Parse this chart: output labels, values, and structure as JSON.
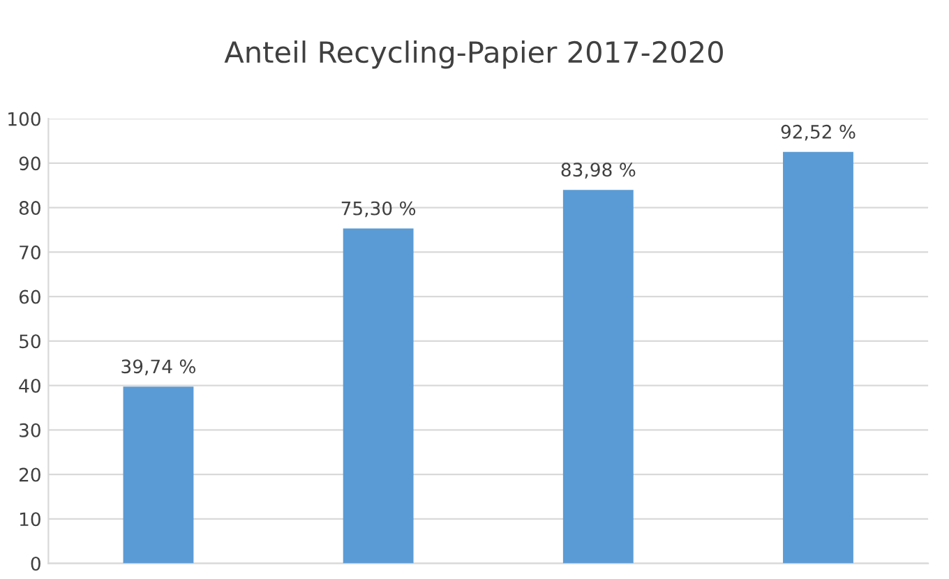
{
  "chart_data": {
    "type": "bar",
    "title": "Anteil Recycling-Papier 2017-2020",
    "categories": [
      null,
      null,
      null,
      null
    ],
    "values": [
      39.74,
      75.3,
      83.98,
      92.52
    ],
    "value_labels": [
      "39,74 %",
      "75,30 %",
      "83,98 %",
      "92,52 %"
    ],
    "color": "#5b9bd5",
    "ylim": [
      0,
      100
    ],
    "yticks": [
      0,
      10,
      20,
      30,
      40,
      50,
      60,
      70,
      80,
      90,
      100
    ],
    "grid": "y",
    "legend": false
  }
}
